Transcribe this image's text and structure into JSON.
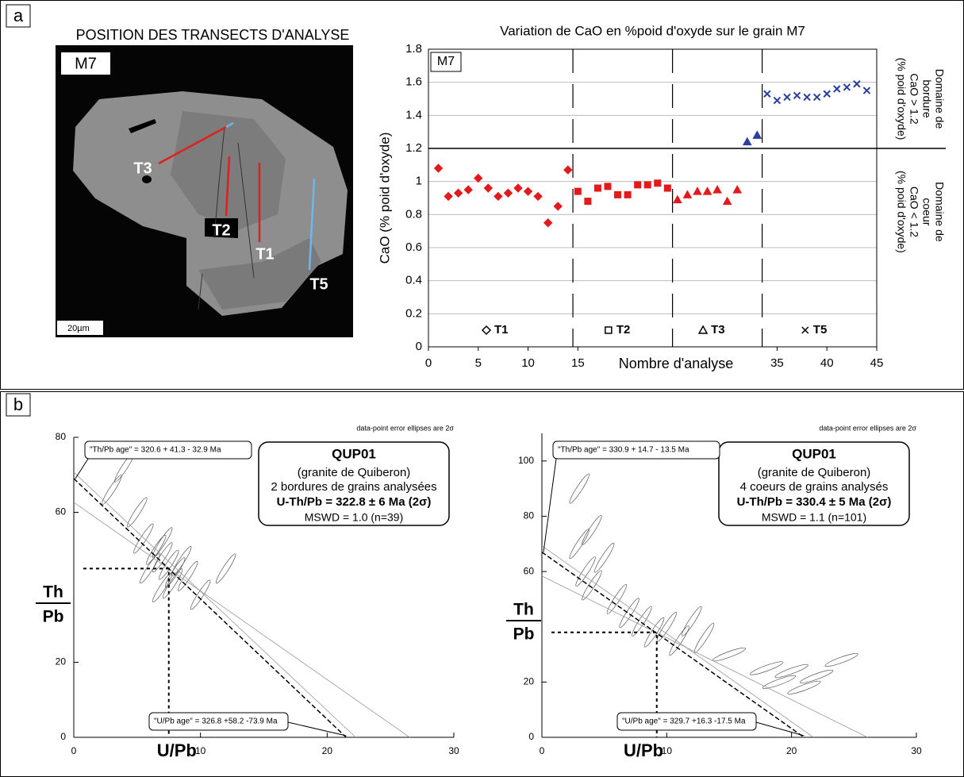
{
  "panels": [
    "a",
    "b"
  ],
  "image": {
    "title": "POSITION DES TRANSECTS D'ANALYSE",
    "grain": "M7",
    "transects": [
      "T1",
      "T2",
      "T3",
      "T5"
    ],
    "scale": "20µm"
  },
  "chart_data": [
    {
      "type": "scatter",
      "title": "Variation de CaO en %poid d'oxyde sur le grain M7",
      "x_label": "Nombre d'analyse",
      "y_label": "CaO (% poid d'oxyde)",
      "label": "M7",
      "xlim": [
        0,
        45
      ],
      "xticks": [
        0,
        5,
        10,
        15,
        35,
        40,
        45
      ],
      "ylim": [
        0,
        1.8
      ],
      "yticks": [
        0,
        0.2,
        0.4,
        0.6,
        0.8,
        1,
        1.2,
        1.4,
        1.6,
        1.8
      ],
      "grid": true,
      "threshold": 1.2,
      "color_below": "#e31a1c",
      "color_above": "#2b3f9e",
      "separators": [
        14.5,
        24.5,
        33.5
      ],
      "zone_above": [
        "Domaine de",
        "bordure",
        "CaO > 1.2",
        "(% poid d'oxyde)"
      ],
      "zone_below": [
        "Domaine de",
        "coeur",
        "CaO < 1.2",
        "(% poid d'oxyde)"
      ],
      "series": [
        {
          "name": "T1",
          "marker": "diamond",
          "x": [
            1,
            2,
            3,
            4,
            5,
            6,
            7,
            8,
            9,
            10,
            11,
            12,
            13,
            14
          ],
          "values": [
            1.08,
            0.91,
            0.93,
            0.95,
            1.02,
            0.96,
            0.91,
            0.93,
            0.96,
            0.94,
            0.91,
            0.75,
            0.85,
            1.07
          ]
        },
        {
          "name": "T2",
          "marker": "square",
          "x": [
            15,
            16,
            17,
            18,
            19,
            20,
            21,
            22,
            23,
            24
          ],
          "values": [
            0.94,
            0.88,
            0.96,
            0.97,
            0.92,
            0.92,
            0.98,
            0.98,
            0.99,
            0.96
          ]
        },
        {
          "name": "T3",
          "marker": "triangle",
          "x": [
            25,
            26,
            27,
            28,
            29,
            30,
            31,
            32,
            33
          ],
          "values": [
            0.89,
            0.92,
            0.94,
            0.94,
            0.95,
            0.88,
            0.95,
            1.24,
            1.28
          ]
        },
        {
          "name": "T5",
          "marker": "cross",
          "x": [
            34,
            35,
            36,
            37,
            38,
            39,
            40,
            41,
            42,
            43,
            44
          ],
          "values": [
            1.53,
            1.49,
            1.51,
            1.52,
            1.51,
            1.51,
            1.53,
            1.56,
            1.57,
            1.59,
            1.55
          ]
        }
      ]
    },
    {
      "type": "ellipse",
      "note": "data-point error ellipses are 2σ",
      "x_label": "U/Pb",
      "y_label_num": "Th",
      "y_label_den": "Pb",
      "box": [
        "QUP01",
        "(granite de Quiberon)",
        "2 bordures de grains analysées",
        "U-Th/Pb = 322.8 ± 6 Ma (2σ)",
        "MSWD = 1.0 (n=39)"
      ],
      "th_pb_age": "\"Th/Pb age\" =  320.6 + 41.3 - 32.9 Ma",
      "u_pb_age": "\"U/Pb age\" = 326.8 +58.2 -73.9 Ma",
      "xlim": [
        0,
        30
      ],
      "xticks": [
        0,
        10,
        20,
        30
      ],
      "ylim": [
        0,
        80
      ],
      "yticks": [
        0,
        20,
        60,
        80
      ],
      "y_intercept": 69,
      "x_intercept": 21.5,
      "age_point": [
        7.5,
        45
      ],
      "color": "#555555",
      "ellipses": {
        "x": [
          7,
          7.5,
          8,
          6.5,
          7,
          8.5,
          6,
          7.8,
          9,
          5.5,
          4,
          3,
          5,
          12,
          10,
          7
        ],
        "y": [
          48,
          46,
          44,
          50,
          52,
          47,
          45,
          41,
          43,
          53,
          72,
          66,
          60,
          45,
          38,
          40
        ]
      }
    },
    {
      "type": "ellipse",
      "note": "data-point error ellipses are 2σ",
      "x_label": "U/Pb",
      "y_label_num": "Th",
      "y_label_den": "Pb",
      "box": [
        "QUP01",
        "(granite de Quiberon)",
        "4 coeurs de grains analysés",
        "U-Th/Pb = 330.4 ± 5 Ma (2σ)",
        "MSWD = 1.1 (n=101)"
      ],
      "th_pb_age": "\"Th/Pb age\" =  330.9 + 14.7 - 13.5 Ma",
      "u_pb_age": "\"U/Pb age\" = 329.7 +16.3 -17.5 Ma",
      "xlim": [
        0,
        30
      ],
      "xticks": [
        0,
        10,
        20,
        30
      ],
      "ylim": [
        0,
        110
      ],
      "yticks": [
        0,
        20,
        60,
        80,
        100
      ],
      "y_intercept": 67,
      "x_intercept": 21,
      "age_point": [
        9.2,
        38
      ],
      "color": "#555555",
      "ellipses": {
        "x": [
          3,
          3.5,
          4,
          4,
          5,
          6,
          7,
          8,
          9,
          10,
          11,
          12,
          13,
          15,
          18,
          20,
          22,
          24,
          19,
          21,
          3
        ],
        "y": [
          70,
          60,
          55,
          75,
          65,
          50,
          45,
          42,
          38,
          40,
          35,
          42,
          36,
          30,
          25,
          24,
          22,
          28,
          20,
          18,
          90
        ]
      }
    }
  ]
}
